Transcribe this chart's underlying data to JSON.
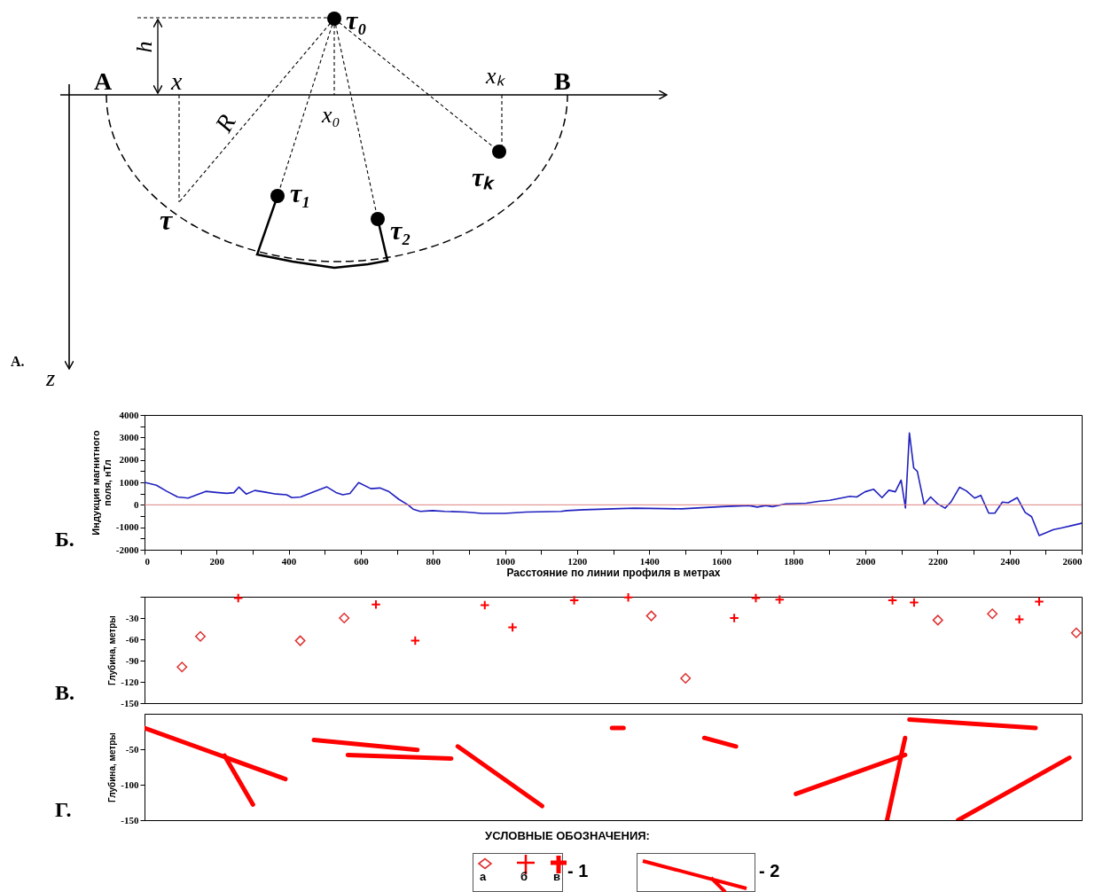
{
  "chart_data": [
    {
      "type": "other",
      "annotations": [
        "h",
        "A",
        "x",
        "x₀",
        "xₖ",
        "B",
        "R",
        "τ₀",
        "τ",
        "τ₁",
        "τ₂",
        "τₖ",
        "z",
        "А."
      ]
    },
    {
      "type": "line",
      "xlabel": "Расстояние по линии профиля в метрах",
      "ylabel": "Индукция магнитного поля, нТл",
      "annotations": [
        "Б."
      ],
      "xlim": [
        0,
        2600
      ],
      "xticks": [
        0,
        {
          "value": 100,
          "label": null
        },
        200,
        {
          "value": 300,
          "label": null
        },
        400,
        {
          "value": 500,
          "label": null
        },
        600,
        {
          "value": 700,
          "label": null
        },
        800,
        {
          "value": 900,
          "label": null
        },
        1000,
        {
          "value": 1100,
          "label": null
        },
        1200,
        {
          "value": 1300,
          "label": null
        },
        1400,
        {
          "value": 1500,
          "label": null
        },
        1600,
        {
          "value": 1700,
          "label": null
        },
        1800,
        {
          "value": 1900,
          "label": null
        },
        2000,
        {
          "value": 2100,
          "label": null
        },
        2200,
        {
          "value": 2300,
          "label": null
        },
        2400,
        {
          "value": 2500,
          "label": null
        },
        2600
      ],
      "ylim": [
        -2000,
        4000
      ],
      "yticks": [
        -2000,
        {
          "value": -1500,
          "label": null
        },
        -1000,
        {
          "value": -500,
          "label": null
        },
        0,
        {
          "value": 500,
          "label": null
        },
        1000,
        {
          "value": 1500,
          "label": null
        },
        2000,
        {
          "value": 2500,
          "label": null
        },
        3000,
        {
          "value": 3500,
          "label": null
        },
        4000
      ],
      "ref_lines": [
        {
          "axis": "y",
          "value": 0,
          "color": "#e08080"
        }
      ],
      "series": [
        {
          "color": "#2020c0",
          "x": [
            0,
            33,
            62,
            92,
            121,
            150,
            170,
            199,
            228,
            248,
            262,
            282,
            306,
            336,
            365,
            394,
            409,
            433,
            472,
            506,
            531,
            550,
            570,
            594,
            628,
            653,
            677,
            706,
            731,
            745,
            765,
            799,
            833,
            892,
            936,
            999,
            1058,
            1155,
            1172,
            1220,
            1359,
            1490,
            1602,
            1677,
            1700,
            1723,
            1742,
            1779,
            1836,
            1873,
            1901,
            1957,
            1976,
            1999,
            2023,
            2046,
            2065,
            2083,
            2099,
            2111,
            2122,
            2134,
            2144,
            2163,
            2181,
            2200,
            2221,
            2237,
            2261,
            2280,
            2303,
            2320,
            2342,
            2359,
            2380,
            2396,
            2421,
            2443,
            2461,
            2482,
            2522,
            2546,
            2579,
            2600
          ],
          "values": [
            1000,
            870,
            600,
            350,
            300,
            480,
            600,
            550,
            510,
            540,
            790,
            480,
            640,
            560,
            480,
            450,
            320,
            350,
            600,
            800,
            550,
            450,
            510,
            990,
            720,
            750,
            600,
            240,
            0,
            -190,
            -290,
            -260,
            -290,
            -320,
            -380,
            -380,
            -320,
            -290,
            -260,
            -220,
            -150,
            -180,
            -80,
            -30,
            -100,
            -30,
            -80,
            40,
            70,
            160,
            200,
            380,
            350,
            580,
            690,
            320,
            650,
            580,
            1100,
            -140,
            3200,
            1640,
            1490,
            20,
            350,
            50,
            -150,
            120,
            780,
            620,
            300,
            420,
            -370,
            -370,
            120,
            90,
            320,
            -340,
            -530,
            -1370,
            -1100,
            -1020,
            -900,
            -820
          ]
        }
      ]
    },
    {
      "type": "scatter",
      "ylabel": "Глубина, метры",
      "annotations": [
        "В."
      ],
      "tick_labels": "y",
      "xlim": [
        0,
        2600
      ],
      "ylim": [
        -150,
        0
      ],
      "yticks": [
        {
          "value": 0,
          "label": null
        },
        -30,
        -60,
        -90,
        -120,
        -150
      ],
      "series": [
        {
          "color": "#e03030",
          "marker": "diamond",
          "x": [
            104,
            155,
            432,
            554,
            1406,
            1501,
            2201,
            2352,
            2585
          ],
          "values": [
            -99,
            -56,
            -62,
            -30,
            -27,
            -115,
            -33,
            -24,
            -51
          ]
        },
        {
          "color": "#ff0000",
          "marker": "cross",
          "x": [
            260,
            642,
            751,
            944,
            1192,
            1342,
            1636,
            1696,
            1762,
            2075,
            2135,
            2482
          ],
          "values": [
            -2,
            -11,
            -62,
            -12,
            -5,
            -1,
            -30,
            -2,
            -4,
            -5,
            -8,
            -7
          ]
        },
        {
          "color": "#ff0000",
          "marker": "cross",
          "x": [
            1021,
            2427
          ],
          "values": [
            -43,
            -32
          ]
        }
      ]
    },
    {
      "type": "line",
      "ylabel": "Глубина, метры",
      "annotations": [
        "Г."
      ],
      "tick_labels": "y",
      "xlim": [
        0,
        2600
      ],
      "ylim": [
        -150,
        0
      ],
      "yticks": [
        -50,
        -100,
        -150
      ],
      "series": [
        {
          "color": "#ff0000",
          "x": [
            0,
            391
          ],
          "values": [
            -20,
            -92
          ]
        },
        {
          "color": "#ff0000",
          "x": [
            222,
            301
          ],
          "values": [
            -59,
            -128
          ]
        },
        {
          "color": "#ff0000",
          "x": [
            470,
            757
          ],
          "values": [
            -37,
            -51
          ]
        },
        {
          "color": "#ff0000",
          "x": [
            564,
            851
          ],
          "values": [
            -58,
            -63
          ]
        },
        {
          "color": "#ff0000",
          "x": [
            869,
            1103
          ],
          "values": [
            -46,
            -130
          ]
        },
        {
          "color": "#ff0000",
          "x": [
            1297,
            1329
          ],
          "values": [
            -20,
            -20
          ]
        },
        {
          "color": "#ff0000",
          "x": [
            1553,
            1641
          ],
          "values": [
            -34,
            -46
          ]
        },
        {
          "color": "#ff0000",
          "x": [
            1807,
            2110
          ],
          "values": [
            -113,
            -58
          ]
        },
        {
          "color": "#ff0000",
          "x": [
            2060,
            2110
          ],
          "values": [
            -150,
            -34
          ]
        },
        {
          "color": "#ff0000",
          "x": [
            2122,
            2472
          ],
          "values": [
            -8,
            -20
          ]
        },
        {
          "color": "#ff0000",
          "x": [
            2257,
            2566
          ],
          "values": [
            -150,
            -62
          ]
        }
      ]
    },
    {
      "type": "other",
      "annotations": [
        "УСЛОВНЫЕ ОБОЗНАЧЕНИЯ:",
        "а",
        "б",
        "в",
        "- 1",
        "- 2"
      ]
    }
  ]
}
